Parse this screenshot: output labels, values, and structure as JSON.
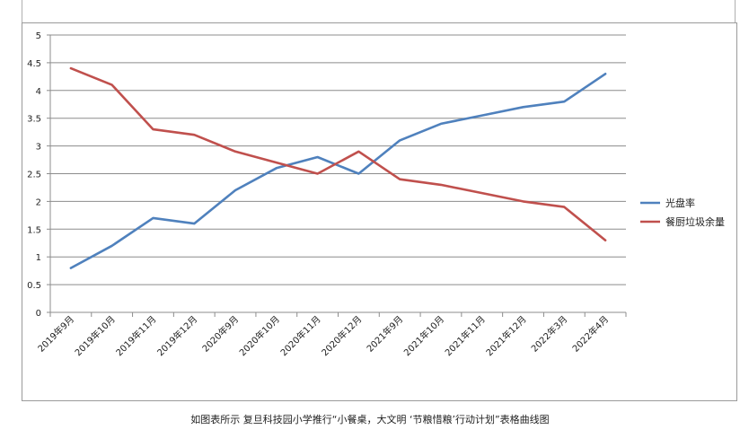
{
  "caption": "如图表所示  复旦科技园小学推行“小餐桌，大文明  ‘节粮惜粮’行动计划”表格曲线图",
  "chart_data": {
    "type": "line",
    "title": "",
    "xlabel": "",
    "ylabel": "",
    "ylim": [
      0,
      5
    ],
    "yticks": [
      "0",
      "0.5",
      "1",
      "1.5",
      "2",
      "2.5",
      "3",
      "3.5",
      "4",
      "4.5",
      "5"
    ],
    "grid": true,
    "legend_position": "right",
    "categories": [
      "2019年9月",
      "2019年10月",
      "2019年11月",
      "2019年12月",
      "2020年9月",
      "2020年10月",
      "2020年11月",
      "2020年12月",
      "2021年9月",
      "2021年10月",
      "2021年11月",
      "2021年12月",
      "2022年3月",
      "2022年4月"
    ],
    "series": [
      {
        "name": "光盘率",
        "color": "#4f81bd",
        "values": [
          0.8,
          1.2,
          1.7,
          1.6,
          2.2,
          2.6,
          2.8,
          2.5,
          3.1,
          3.4,
          3.55,
          3.7,
          3.8,
          4.3
        ]
      },
      {
        "name": "餐厨垃圾余量",
        "color": "#c0504d",
        "values": [
          4.4,
          4.1,
          3.3,
          3.2,
          2.9,
          2.7,
          2.5,
          2.9,
          2.4,
          2.3,
          2.15,
          2.0,
          1.9,
          1.3
        ]
      }
    ]
  }
}
